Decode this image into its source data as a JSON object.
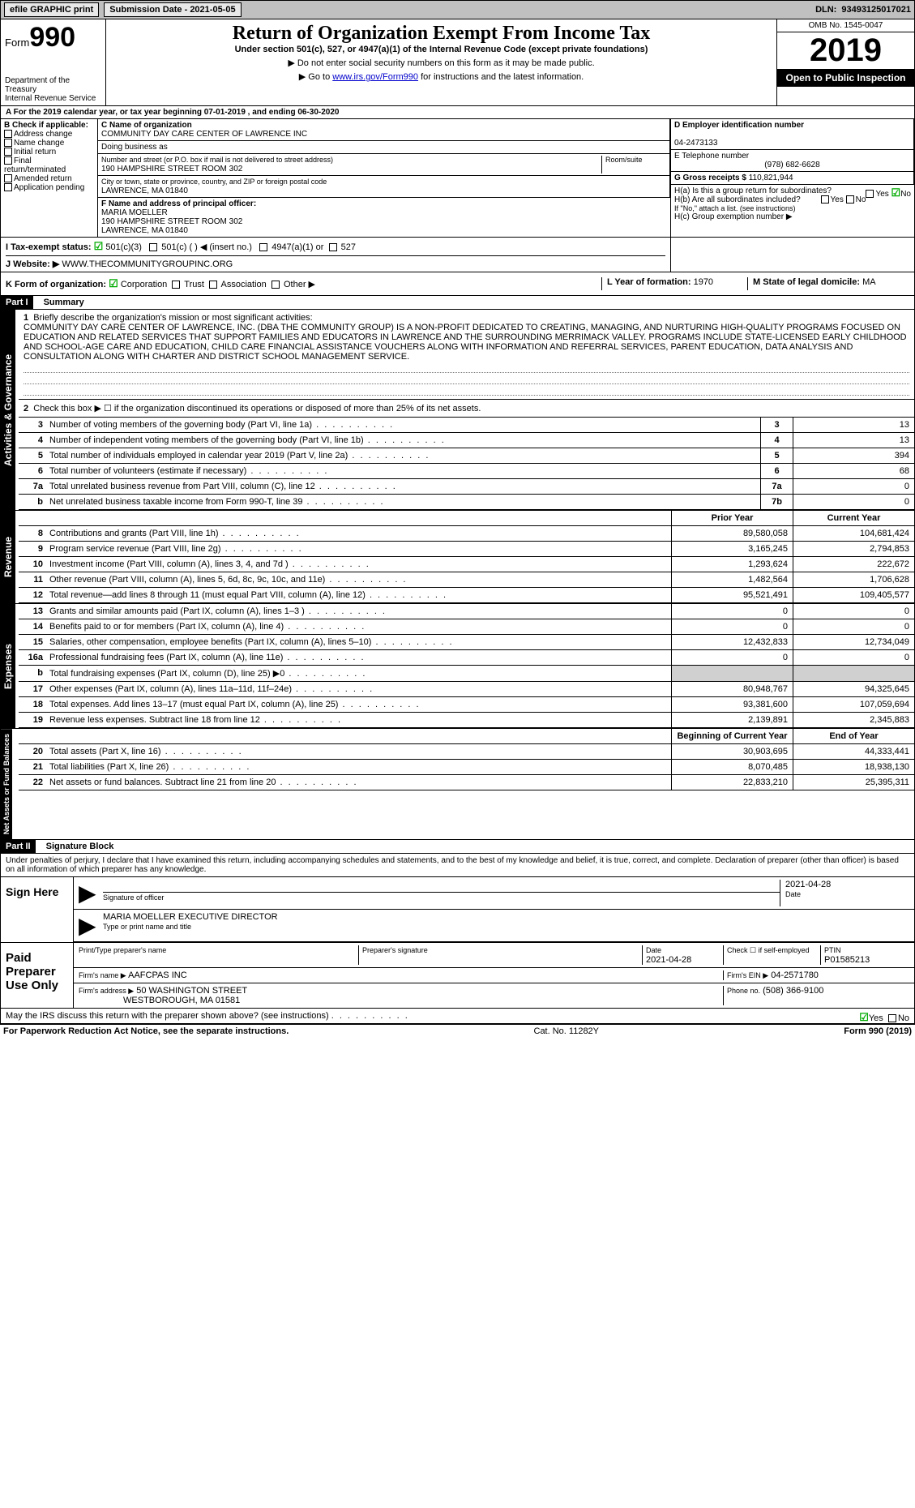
{
  "topbar": {
    "efile": "efile GRAPHIC print",
    "sub_lbl": "Submission Date - 2021-05-05",
    "dln_lbl": "DLN:",
    "dln": "93493125017021"
  },
  "header": {
    "form_label": "Form",
    "form_no": "990",
    "dept": "Department of the Treasury\nInternal Revenue Service",
    "title": "Return of Organization Exempt From Income Tax",
    "sub1": "Under section 501(c), 527, or 4947(a)(1) of the Internal Revenue Code (except private foundations)",
    "sub2": "▶ Do not enter social security numbers on this form as it may be made public.",
    "sub3_pre": "▶ Go to ",
    "sub3_link": "www.irs.gov/Form990",
    "sub3_post": " for instructions and the latest information.",
    "omb": "OMB No. 1545-0047",
    "year": "2019",
    "open": "Open to Public Inspection"
  },
  "lineA": "For the 2019 calendar year, or tax year beginning 07-01-2019   , and ending 06-30-2020",
  "boxB": {
    "hdr": "B Check if applicable:",
    "opts": [
      "Address change",
      "Name change",
      "Initial return",
      "Final return/terminated",
      "Amended return",
      "Application pending"
    ]
  },
  "boxC": {
    "label": "C Name of organization",
    "name": "COMMUNITY DAY CARE CENTER OF LAWRENCE INC",
    "dba": "Doing business as",
    "addr_lbl": "Number and street (or P.O. box if mail is not delivered to street address)",
    "room_lbl": "Room/suite",
    "addr": "190 HAMPSHIRE STREET ROOM 302",
    "city_lbl": "City or town, state or province, country, and ZIP or foreign postal code",
    "city": "LAWRENCE, MA  01840"
  },
  "boxD": {
    "label": "D Employer identification number",
    "val": "04-2473133"
  },
  "boxE": {
    "label": "E Telephone number",
    "val": "(978) 682-6628"
  },
  "boxG": {
    "label": "G Gross receipts $",
    "val": "110,821,944"
  },
  "boxF": {
    "label": "F Name and address of principal officer:",
    "name": "MARIA MOELLER",
    "addr": "190 HAMPSHIRE STREET ROOM 302",
    "city": "LAWRENCE, MA  01840"
  },
  "boxH": {
    "a": "H(a)  Is this a group return for subordinates?",
    "b": "H(b)  Are all subordinates included?",
    "note": "If \"No,\" attach a list. (see instructions)",
    "c": "H(c)  Group exemption number ▶",
    "yes": "Yes",
    "no": "No"
  },
  "lineI": {
    "label": "I   Tax-exempt status:",
    "o1": "501(c)(3)",
    "o2": "501(c) (   ) ◀ (insert no.)",
    "o3": "4947(a)(1) or",
    "o4": "527"
  },
  "lineJ": {
    "label": "J   Website: ▶",
    "val": "WWW.THECOMMUNITYGROUPINC.ORG"
  },
  "lineK": {
    "label": "K Form of organization:",
    "o1": "Corporation",
    "o2": "Trust",
    "o3": "Association",
    "o4": "Other ▶"
  },
  "lineL": {
    "label": "L Year of formation:",
    "val": "1970"
  },
  "lineM": {
    "label": "M State of legal domicile:",
    "val": "MA"
  },
  "partI": {
    "label": "Part I",
    "title": "Summary"
  },
  "mission": {
    "num": "1",
    "intro": "Briefly describe the organization's mission or most significant activities:",
    "text": "COMMUNITY DAY CARE CENTER OF LAWRENCE, INC. (DBA THE COMMUNITY GROUP) IS A NON-PROFIT DEDICATED TO CREATING, MANAGING, AND NURTURING HIGH-QUALITY PROGRAMS FOCUSED ON EDUCATION AND RELATED SERVICES THAT SUPPORT FAMILIES AND EDUCATORS IN LAWRENCE AND THE SURROUNDING MERRIMACK VALLEY. PROGRAMS INCLUDE STATE-LICENSED EARLY CHILDHOOD AND SCHOOL-AGE CARE AND EDUCATION, CHILD CARE FINANCIAL ASSISTANCE VOUCHERS ALONG WITH INFORMATION AND REFERRAL SERVICES, PARENT EDUCATION, DATA ANALYSIS AND CONSULTATION ALONG WITH CHARTER AND DISTRICT SCHOOL MANAGEMENT SERVICE."
  },
  "line2": {
    "num": "2",
    "text": "Check this box ▶ ☐ if the organization discontinued its operations or disposed of more than 25% of its net assets."
  },
  "gov_rows": [
    {
      "n": "3",
      "d": "Number of voting members of the governing body (Part VI, line 1a)",
      "i": "3",
      "v": "13"
    },
    {
      "n": "4",
      "d": "Number of independent voting members of the governing body (Part VI, line 1b)",
      "i": "4",
      "v": "13"
    },
    {
      "n": "5",
      "d": "Total number of individuals employed in calendar year 2019 (Part V, line 2a)",
      "i": "5",
      "v": "394"
    },
    {
      "n": "6",
      "d": "Total number of volunteers (estimate if necessary)",
      "i": "6",
      "v": "68"
    },
    {
      "n": "7a",
      "d": "Total unrelated business revenue from Part VIII, column (C), line 12",
      "i": "7a",
      "v": "0"
    },
    {
      "n": "b",
      "d": "Net unrelated business taxable income from Form 990-T, line 39",
      "i": "7b",
      "v": "0"
    }
  ],
  "two_hdr": {
    "py": "Prior Year",
    "cy": "Current Year"
  },
  "rev_rows": [
    {
      "n": "8",
      "d": "Contributions and grants (Part VIII, line 1h)",
      "py": "89,580,058",
      "cy": "104,681,424"
    },
    {
      "n": "9",
      "d": "Program service revenue (Part VIII, line 2g)",
      "py": "3,165,245",
      "cy": "2,794,853"
    },
    {
      "n": "10",
      "d": "Investment income (Part VIII, column (A), lines 3, 4, and 7d )",
      "py": "1,293,624",
      "cy": "222,672"
    },
    {
      "n": "11",
      "d": "Other revenue (Part VIII, column (A), lines 5, 6d, 8c, 9c, 10c, and 11e)",
      "py": "1,482,564",
      "cy": "1,706,628"
    },
    {
      "n": "12",
      "d": "Total revenue—add lines 8 through 11 (must equal Part VIII, column (A), line 12)",
      "py": "95,521,491",
      "cy": "109,405,577"
    }
  ],
  "exp_rows": [
    {
      "n": "13",
      "d": "Grants and similar amounts paid (Part IX, column (A), lines 1–3 )",
      "py": "0",
      "cy": "0"
    },
    {
      "n": "14",
      "d": "Benefits paid to or for members (Part IX, column (A), line 4)",
      "py": "0",
      "cy": "0"
    },
    {
      "n": "15",
      "d": "Salaries, other compensation, employee benefits (Part IX, column (A), lines 5–10)",
      "py": "12,432,833",
      "cy": "12,734,049"
    },
    {
      "n": "16a",
      "d": "Professional fundraising fees (Part IX, column (A), line 11e)",
      "py": "0",
      "cy": "0"
    },
    {
      "n": "b",
      "d": "Total fundraising expenses (Part IX, column (D), line 25) ▶0",
      "py": "",
      "cy": "",
      "shade": true
    },
    {
      "n": "17",
      "d": "Other expenses (Part IX, column (A), lines 11a–11d, 11f–24e)",
      "py": "80,948,767",
      "cy": "94,325,645"
    },
    {
      "n": "18",
      "d": "Total expenses. Add lines 13–17 (must equal Part IX, column (A), line 25)",
      "py": "93,381,600",
      "cy": "107,059,694"
    },
    {
      "n": "19",
      "d": "Revenue less expenses. Subtract line 18 from line 12",
      "py": "2,139,891",
      "cy": "2,345,883"
    }
  ],
  "na_hdr": {
    "by": "Beginning of Current Year",
    "ey": "End of Year"
  },
  "na_rows": [
    {
      "n": "20",
      "d": "Total assets (Part X, line 16)",
      "py": "30,903,695",
      "cy": "44,333,441"
    },
    {
      "n": "21",
      "d": "Total liabilities (Part X, line 26)",
      "py": "8,070,485",
      "cy": "18,938,130"
    },
    {
      "n": "22",
      "d": "Net assets or fund balances. Subtract line 21 from line 20",
      "py": "22,833,210",
      "cy": "25,395,311"
    }
  ],
  "vtabs": {
    "gov": "Activities & Governance",
    "rev": "Revenue",
    "exp": "Expenses",
    "na": "Net Assets or Fund Balances"
  },
  "partII": {
    "label": "Part II",
    "title": "Signature Block"
  },
  "perjury": "Under penalties of perjury, I declare that I have examined this return, including accompanying schedules and statements, and to the best of my knowledge and belief, it is true, correct, and complete. Declaration of preparer (other than officer) is based on all information of which preparer has any knowledge.",
  "sign": {
    "here": "Sign Here",
    "sig_of": "Signature of officer",
    "date_lbl": "Date",
    "date": "2021-04-28",
    "name": "MARIA MOELLER  EXECUTIVE DIRECTOR",
    "type_lbl": "Type or print name and title"
  },
  "prep": {
    "here": "Paid Preparer Use Only",
    "pn_lbl": "Print/Type preparer's name",
    "sig_lbl": "Preparer's signature",
    "date_lbl": "Date",
    "date": "2021-04-28",
    "self_lbl": "Check ☐ if self-employed",
    "ptin_lbl": "PTIN",
    "ptin": "P01585213",
    "firm_lbl": "Firm's name  ▶",
    "firm": "AAFCPAS INC",
    "ein_lbl": "Firm's EIN ▶",
    "ein": "04-2571780",
    "addr_lbl": "Firm's address ▶",
    "addr": "50 WASHINGTON STREET",
    "addr2": "WESTBOROUGH, MA  01581",
    "phone_lbl": "Phone no.",
    "phone": "(508) 366-9100"
  },
  "discuss": {
    "q": "May the IRS discuss this return with the preparer shown above? (see instructions)",
    "yes": "Yes",
    "no": "No"
  },
  "footer": {
    "pra": "For Paperwork Reduction Act Notice, see the separate instructions.",
    "cat": "Cat. No. 11282Y",
    "form": "Form 990 (2019)"
  }
}
